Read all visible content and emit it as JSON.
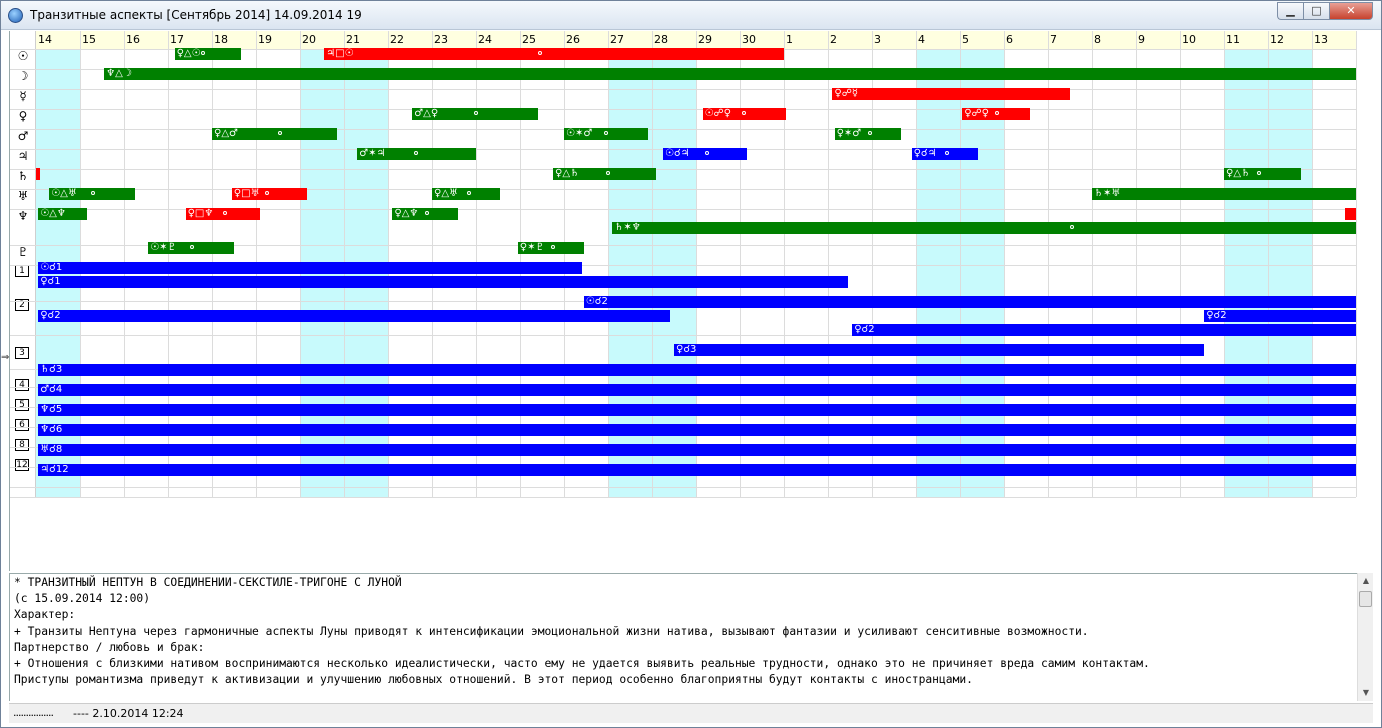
{
  "window": {
    "title": "Транзитные аспекты [Сентябрь 2014]  14.09.2014 19",
    "minimize_glyph": "▁",
    "maximize_glyph": "□",
    "close_glyph": "✕"
  },
  "days": [
    "14",
    "15",
    "16",
    "17",
    "18",
    "19",
    "20",
    "21",
    "22",
    "23",
    "24",
    "25",
    "26",
    "27",
    "28",
    "29",
    "30",
    "1",
    "2",
    "3",
    "4",
    "5",
    "6",
    "7",
    "8",
    "9",
    "10",
    "11",
    "12",
    "13"
  ],
  "highlighted_day_indexes": [
    0,
    6,
    7,
    13,
    14,
    20,
    21,
    27,
    28
  ],
  "planet_rows": [
    {
      "glyph": "☉"
    },
    {
      "glyph": "☽"
    },
    {
      "glyph": "☿"
    },
    {
      "glyph": "♀"
    },
    {
      "glyph": "♂"
    },
    {
      "glyph": "♃"
    },
    {
      "glyph": "♄"
    },
    {
      "glyph": "♅"
    },
    {
      "glyph": "♆"
    },
    {
      "glyph": "♇"
    }
  ],
  "house_markers": [
    {
      "label": "1"
    },
    {
      "label": "2"
    },
    {
      "label": "3"
    },
    {
      "label": "4"
    },
    {
      "label": "5"
    },
    {
      "label": "6"
    },
    {
      "label": "8"
    },
    {
      "label": "12"
    }
  ],
  "colors": {
    "green": "#008000",
    "red": "#ff0000",
    "blue": "#0000ff",
    "highlight": "#c8fafc"
  },
  "bars": [
    {
      "label": "♀△☉",
      "color": "green",
      "start": 3.15,
      "end": 4.65,
      "dot": 3.75
    },
    {
      "label": "♃□☉",
      "color": "red",
      "start": 6.55,
      "end": 17.0,
      "dot": 11.4
    },
    {
      "label": "♆△☽",
      "color": "green",
      "start": 1.55,
      "end": 30.0,
      "dot": null
    },
    {
      "label": "♀☍☿",
      "color": "red",
      "start": 18.1,
      "end": 23.5,
      "dot": null
    },
    {
      "label": "♂△♀",
      "color": "green",
      "start": 8.55,
      "end": 11.4,
      "dot": 9.95
    },
    {
      "label": "☉☍♀",
      "color": "red",
      "start": 15.15,
      "end": 17.05,
      "dot": 16.05
    },
    {
      "label": "♀☍♀",
      "color": "red",
      "start": 21.05,
      "end": 22.6,
      "dot": 21.8
    },
    {
      "label": "♀△♂",
      "color": "green",
      "start": 4.0,
      "end": 6.85,
      "dot": 5.5
    },
    {
      "label": "☉✶♂",
      "color": "green",
      "start": 12.0,
      "end": 13.9,
      "dot": 12.9
    },
    {
      "label": "♀✶♂",
      "color": "green",
      "start": 18.15,
      "end": 19.65,
      "dot": 18.9
    },
    {
      "label": "♂✶♃",
      "color": "green",
      "start": 7.3,
      "end": 10.0,
      "dot": 8.6
    },
    {
      "label": "☉☌♃",
      "color": "blue",
      "start": 14.25,
      "end": 16.15,
      "dot": 15.2
    },
    {
      "label": "♀☌♃",
      "color": "blue",
      "start": 19.9,
      "end": 21.4,
      "dot": 20.65
    },
    {
      "label": "",
      "color": "red",
      "start": 0.0,
      "end": 0.08,
      "dot": null
    },
    {
      "label": "♀△♄",
      "color": "green",
      "start": 11.75,
      "end": 14.1,
      "dot": 12.95
    },
    {
      "label": "♀△♄",
      "color": "green",
      "start": 27.0,
      "end": 28.75,
      "dot": 27.75
    },
    {
      "label": "☉△♅",
      "color": "green",
      "start": 0.3,
      "end": 2.25,
      "dot": 1.25
    },
    {
      "label": "♀□♅",
      "color": "red",
      "start": 4.45,
      "end": 6.15,
      "dot": 5.2
    },
    {
      "label": "♀△♅",
      "color": "green",
      "start": 9.0,
      "end": 10.55,
      "dot": 9.8
    },
    {
      "label": "♄✶♅",
      "color": "green",
      "start": 24.0,
      "end": 30.0,
      "dot": null
    },
    {
      "label": "☉△♆",
      "color": "green",
      "start": 0.05,
      "end": 1.15,
      "dot": null
    },
    {
      "label": "♀□♆",
      "color": "red",
      "start": 3.4,
      "end": 5.1,
      "dot": 4.25
    },
    {
      "label": "♀△♆",
      "color": "green",
      "start": 8.1,
      "end": 9.6,
      "dot": 8.85
    },
    {
      "label": "",
      "color": "red",
      "start": 29.75,
      "end": 30.0,
      "dot": null
    },
    {
      "label": "♄✶♆",
      "color": "green",
      "start": 13.1,
      "end": 30.0,
      "dot": 23.5
    },
    {
      "label": "☉✶♇",
      "color": "green",
      "start": 2.55,
      "end": 4.5,
      "dot": 3.5
    },
    {
      "label": "♀✶♇",
      "color": "green",
      "start": 10.95,
      "end": 12.45,
      "dot": 11.7
    },
    {
      "label": "☉☌1",
      "color": "blue",
      "start": 0.05,
      "end": 12.4,
      "dot": null
    },
    {
      "label": "♀☌1",
      "color": "blue",
      "start": 0.05,
      "end": 18.45,
      "dot": null
    },
    {
      "label": "☉☌2",
      "color": "blue",
      "start": 12.45,
      "end": 30.0,
      "dot": null
    },
    {
      "label": "♀☌2",
      "color": "blue",
      "start": 0.05,
      "end": 14.4,
      "dot": null
    },
    {
      "label": "♀☌2",
      "color": "blue",
      "start": 26.55,
      "end": 30.0,
      "dot": null
    },
    {
      "label": "♀☌2",
      "color": "blue",
      "start": 18.55,
      "end": 30.0,
      "dot": null
    },
    {
      "label": "♀☌3",
      "color": "blue",
      "start": 14.5,
      "end": 26.55,
      "dot": null
    },
    {
      "label": "♄☌3",
      "color": "blue",
      "start": 0.05,
      "end": 30.0,
      "dot": null
    },
    {
      "label": "♂☌4",
      "color": "blue",
      "start": 0.05,
      "end": 30.0,
      "dot": null
    },
    {
      "label": "♆☌5",
      "color": "blue",
      "start": 0.05,
      "end": 30.0,
      "dot": null
    },
    {
      "label": "♆☌6",
      "color": "blue",
      "start": 0.05,
      "end": 30.0,
      "dot": null
    },
    {
      "label": "♅☌8",
      "color": "blue",
      "start": 0.05,
      "end": 30.0,
      "dot": null
    },
    {
      "label": "♃☌12",
      "color": "blue",
      "start": 0.05,
      "end": 30.0,
      "dot": null
    }
  ],
  "text_panel": {
    "lines": [
      "* ТРАНЗИТНЫЙ НЕПТУН В СОЕДИНЕНИИ-СЕКСТИЛЕ-ТРИГОНЕ С ЛУНОЙ",
      "(с 15.09.2014 12:00)",
      "Характер:",
      "+ Транзиты Нептуна через гармоничные аспекты Луны приводят к интенсификации эмоциональной жизни натива, вызывают фантазии и усиливают сенситивные возможности.",
      "Партнерство / любовь и брак:",
      "+ Отношения с близкими нативом воспринимаются несколько идеалистически, часто ему не удается выявить реальные трудности, однако это не причиняет вреда самим контактам.",
      "Приступы романтизма приведут к активизации и улучшению любовных отношений. В этот период особенно благоприятны будут контакты с иностранцами."
    ]
  },
  "statusbar": {
    "dots": "................",
    "text": "---- 2.10.2014 12:24"
  }
}
